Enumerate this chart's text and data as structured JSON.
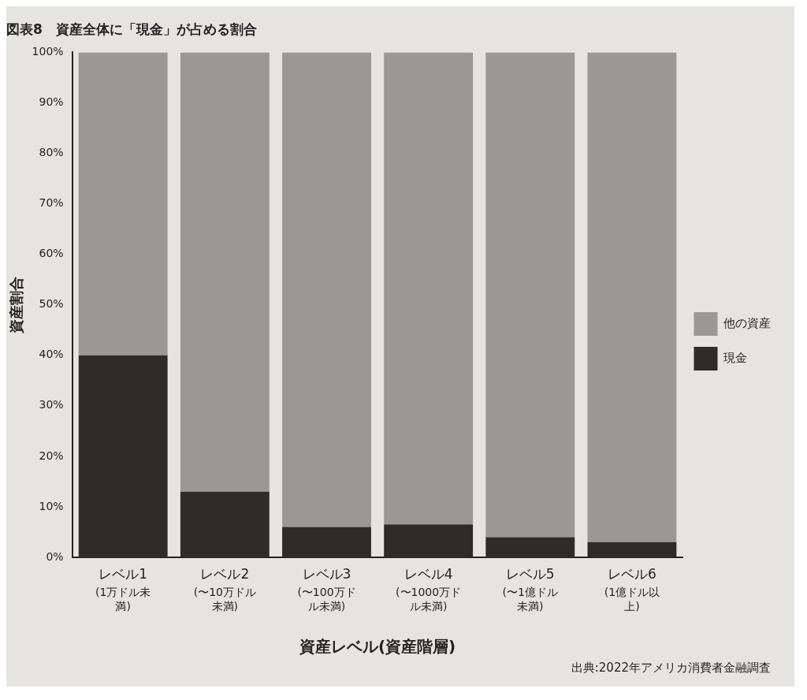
{
  "chart_data": {
    "type": "bar",
    "title": "図表8　資産全体に「現金」が占める割合",
    "xlabel": "資産レベル(資産階層)",
    "ylabel": "資産割合",
    "categories": [
      "レベル1\n(1万ドル未満)",
      "レベル2\n(〜10万ドル未満)",
      "レベル3\n(〜100万ドル未満)",
      "レベル4\n(〜1000万ドル未満)",
      "レベル5\n(〜1億ドル未満)",
      "レベル6\n(1億ドル以上)"
    ],
    "series": [
      {
        "name": "現金",
        "color": "#2e2b2a",
        "values": [
          40,
          13,
          6,
          6.5,
          4,
          3
        ]
      },
      {
        "name": "他の資産",
        "color": "#9a9897",
        "values": [
          60,
          87,
          94,
          93.5,
          96,
          97
        ]
      }
    ],
    "stacked": true,
    "ylim": [
      0,
      100
    ],
    "yticks": [
      {
        "value": 0,
        "label": "0%"
      },
      {
        "value": 10,
        "label": "10%"
      },
      {
        "value": 20,
        "label": "20%"
      },
      {
        "value": 30,
        "label": "30%"
      },
      {
        "value": 40,
        "label": "40%"
      },
      {
        "value": 50,
        "label": "50%"
      },
      {
        "value": 60,
        "label": "60%"
      },
      {
        "value": 70,
        "label": "70%"
      },
      {
        "value": 80,
        "label": "80%"
      },
      {
        "value": 90,
        "label": "90%"
      },
      {
        "value": 100,
        "label": "100%"
      }
    ],
    "grid": false,
    "legend": "right",
    "annotations": [
      "出典:2022年アメリカ消費者金融調査"
    ]
  }
}
